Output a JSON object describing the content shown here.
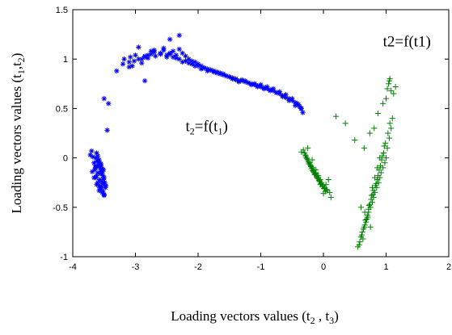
{
  "chart_data": {
    "type": "scatter",
    "xlabel": "Loading vectors values (t2 , t3)",
    "ylabel": "Loading vectors values (t1,t2)",
    "xlim": [
      -4,
      2
    ],
    "ylim": [
      -1,
      1.5
    ],
    "xticks": [
      "-4",
      "-3",
      "-2",
      "-1",
      "0",
      "1",
      "2"
    ],
    "yticks": [
      "-1",
      "-0.5",
      "0",
      "0.5",
      "1",
      "1.5"
    ],
    "grid": false,
    "legend": "none",
    "annotations": [
      {
        "text": "t2=f(t1)",
        "x": -2.2,
        "y": 0.27
      },
      {
        "text": "t2=f(t1)",
        "x": 0.95,
        "y": 1.13
      }
    ],
    "series": [
      {
        "marker": "*",
        "color": "#0000ff",
        "x": [
          -3.62,
          -3.6,
          -3.58,
          -3.57,
          -3.55,
          -3.55,
          -3.53,
          -3.52,
          -3.51,
          -3.6,
          -3.64,
          -3.66,
          -3.63,
          -3.61,
          -3.59,
          -3.56,
          -3.54,
          -3.5,
          -3.52,
          -3.57,
          -3.62,
          -3.58,
          -3.55,
          -3.53,
          -3.48,
          -3.5,
          -3.54,
          -3.6,
          -3.65,
          -3.7,
          -3.72,
          -3.68,
          -3.63,
          -3.57,
          -3.49,
          -3.47,
          -3.51,
          -3.56,
          -3.61,
          -3.59,
          -3.55,
          -3.53,
          -3.58,
          -3.62,
          -3.66,
          -3.69,
          -3.64,
          -3.52,
          -3.5,
          -3.54,
          -3.45,
          -3.43,
          -3.5,
          -3.3,
          -3.2,
          -3.18,
          -3.1,
          -3.05,
          -3.08,
          -3.0,
          -2.95,
          -3.02,
          -2.9,
          -2.85,
          -2.8,
          -2.75,
          -2.7,
          -2.68,
          -2.6,
          -2.55,
          -2.5,
          -2.45,
          -2.4,
          -2.35,
          -2.3,
          -2.25,
          -2.2,
          -2.15,
          -2.1,
          -2.05,
          -2.0,
          -1.95,
          -1.9,
          -1.85,
          -1.8,
          -1.75,
          -1.7,
          -1.65,
          -1.6,
          -1.55,
          -1.5,
          -1.45,
          -1.4,
          -1.35,
          -1.3,
          -1.25,
          -1.2,
          -1.15,
          -1.1,
          -1.05,
          -1.0,
          -0.95,
          -0.9,
          -0.85,
          -0.8,
          -0.75,
          -0.7,
          -0.65,
          -0.6,
          -0.55,
          -0.5,
          -0.45,
          -0.4,
          -0.38,
          -0.35,
          -0.33,
          -2.8,
          -2.75,
          -2.6,
          -2.5,
          -2.4,
          -2.3,
          -2.2,
          -2.1,
          -2.0,
          -1.9,
          -1.8,
          -1.7,
          -1.6,
          -1.5,
          -1.4,
          -1.3,
          -1.2,
          -1.1,
          -1.0,
          -0.9,
          -0.8,
          -0.7,
          -0.6,
          -0.5,
          -0.42,
          -0.36,
          -2.9,
          -2.85,
          -2.7,
          -2.55,
          -2.45,
          -2.35,
          -2.25,
          -2.15,
          -2.05,
          -1.95,
          -1.85,
          -1.75,
          -1.65,
          -1.55,
          -1.45,
          -1.35,
          -1.25,
          -1.15,
          -1.05,
          -0.95,
          -0.85,
          -0.75,
          -0.65,
          -0.55,
          -0.45,
          -2.3,
          -2.45,
          -2.85,
          -3.1,
          -2.95
        ],
        "y": [
          0.05,
          0.02,
          -0.02,
          -0.05,
          -0.08,
          -0.12,
          -0.15,
          -0.18,
          -0.22,
          -0.25,
          -0.1,
          -0.05,
          0.0,
          -0.03,
          -0.07,
          -0.1,
          -0.14,
          -0.2,
          -0.26,
          -0.3,
          -0.18,
          -0.28,
          -0.32,
          -0.35,
          -0.3,
          -0.38,
          -0.24,
          -0.15,
          -0.12,
          0.07,
          0.03,
          0.01,
          -0.2,
          -0.22,
          -0.25,
          -0.28,
          -0.12,
          -0.16,
          -0.09,
          -0.04,
          -0.06,
          -0.11,
          -0.33,
          -0.27,
          -0.2,
          -0.14,
          -0.08,
          -0.34,
          -0.37,
          -0.29,
          0.28,
          0.55,
          0.6,
          0.88,
          0.95,
          1.0,
          0.97,
          0.93,
          1.02,
          1.04,
          1.0,
          0.98,
          0.96,
          1.02,
          1.01,
          1.05,
          1.07,
          1.03,
          1.05,
          1.09,
          1.02,
          1.06,
          1.08,
          1.04,
          1.1,
          1.06,
          1.03,
          1.0,
          0.98,
          0.97,
          0.95,
          0.93,
          0.91,
          0.9,
          0.89,
          0.88,
          0.87,
          0.86,
          0.85,
          0.83,
          0.82,
          0.8,
          0.79,
          0.78,
          0.78,
          0.77,
          0.76,
          0.75,
          0.74,
          0.73,
          0.72,
          0.71,
          0.7,
          0.69,
          0.68,
          0.66,
          0.65,
          0.63,
          0.61,
          0.6,
          0.58,
          0.56,
          0.54,
          0.52,
          0.5,
          0.46,
          1.04,
          1.08,
          1.06,
          1.04,
          1.02,
          1.0,
          0.98,
          0.95,
          0.93,
          0.91,
          0.89,
          0.86,
          0.84,
          0.82,
          0.8,
          0.79,
          0.76,
          0.75,
          0.74,
          0.72,
          0.7,
          0.67,
          0.64,
          0.6,
          0.55,
          0.5,
          1.0,
          1.03,
          1.09,
          1.11,
          1.05,
          1.01,
          0.97,
          0.96,
          0.93,
          0.9,
          0.88,
          0.87,
          0.85,
          0.83,
          0.81,
          0.77,
          0.78,
          0.74,
          0.72,
          0.7,
          0.68,
          0.66,
          0.62,
          0.58,
          0.53,
          1.24,
          1.2,
          0.78,
          0.92,
          1.12
        ]
      },
      {
        "marker": "+",
        "color": "#008000",
        "x": [
          -0.3,
          -0.28,
          -0.25,
          -0.22,
          -0.2,
          -0.18,
          -0.15,
          -0.12,
          -0.1,
          -0.08,
          -0.05,
          -0.03,
          0.0,
          0.02,
          0.05,
          -0.27,
          -0.24,
          -0.21,
          -0.19,
          -0.16,
          -0.13,
          -0.11,
          -0.09,
          -0.06,
          -0.04,
          -0.02,
          0.01,
          0.03,
          -0.32,
          -0.29,
          -0.26,
          -0.23,
          -0.17,
          -0.14,
          -0.07,
          0.04,
          0.06,
          -0.25,
          -0.2,
          -0.15,
          -0.1,
          -0.05,
          0.0,
          -0.18,
          -0.12,
          -0.08,
          0.08,
          0.1,
          0.12,
          -0.35,
          0.55,
          0.58,
          0.6,
          0.62,
          0.65,
          0.68,
          0.7,
          0.72,
          0.75,
          0.78,
          0.8,
          0.82,
          0.85,
          0.88,
          0.9,
          0.92,
          0.95,
          0.98,
          1.0,
          1.02,
          1.05,
          1.08,
          1.1,
          0.57,
          0.61,
          0.64,
          0.67,
          0.7,
          0.73,
          0.76,
          0.79,
          0.83,
          0.86,
          0.89,
          0.93,
          0.96,
          0.99,
          1.03,
          1.06,
          0.63,
          0.66,
          0.69,
          0.72,
          0.74,
          0.77,
          0.8,
          0.84,
          0.87,
          0.91,
          0.94,
          0.97,
          1.0,
          1.02,
          1.04,
          1.06,
          1.08,
          0.78,
          0.82,
          0.86,
          0.9,
          0.6,
          0.66,
          0.71,
          0.75,
          0.2,
          0.35,
          0.5,
          0.65,
          0.74,
          0.81,
          0.87,
          1.12,
          1.15,
          0.95,
          1.05
        ],
        "y": [
          0.05,
          0.02,
          -0.02,
          -0.05,
          -0.08,
          -0.1,
          -0.12,
          -0.15,
          -0.18,
          -0.2,
          -0.22,
          -0.25,
          -0.28,
          -0.3,
          -0.32,
          0.0,
          -0.04,
          -0.07,
          -0.11,
          -0.14,
          -0.16,
          -0.19,
          -0.21,
          -0.24,
          -0.26,
          -0.29,
          -0.31,
          -0.34,
          0.08,
          0.03,
          -0.01,
          -0.06,
          -0.13,
          -0.17,
          -0.23,
          -0.27,
          -0.33,
          0.1,
          -0.09,
          -0.15,
          -0.2,
          -0.27,
          -0.36,
          -0.02,
          -0.12,
          -0.18,
          -0.22,
          -0.35,
          -0.4,
          0.06,
          -0.9,
          -0.85,
          -0.8,
          -0.75,
          -0.7,
          -0.65,
          -0.6,
          -0.55,
          -0.5,
          -0.45,
          -0.4,
          -0.35,
          -0.3,
          -0.25,
          -0.2,
          -0.15,
          -0.1,
          -0.05,
          0.0,
          0.1,
          0.2,
          0.3,
          0.4,
          -0.88,
          -0.78,
          -0.72,
          -0.63,
          -0.58,
          -0.48,
          -0.42,
          -0.37,
          -0.28,
          -0.22,
          -0.12,
          -0.02,
          0.05,
          0.15,
          0.25,
          0.35,
          -0.82,
          -0.68,
          -0.62,
          -0.52,
          -0.47,
          -0.38,
          -0.33,
          -0.26,
          -0.18,
          -0.08,
          0.02,
          0.12,
          0.6,
          0.7,
          0.75,
          0.8,
          0.68,
          -0.3,
          -0.2,
          -0.1,
          0.0,
          -0.5,
          -0.55,
          -0.6,
          -0.7,
          0.42,
          0.35,
          0.18,
          0.1,
          0.25,
          0.3,
          0.45,
          0.65,
          0.72,
          0.55,
          0.78
        ]
      }
    ]
  }
}
